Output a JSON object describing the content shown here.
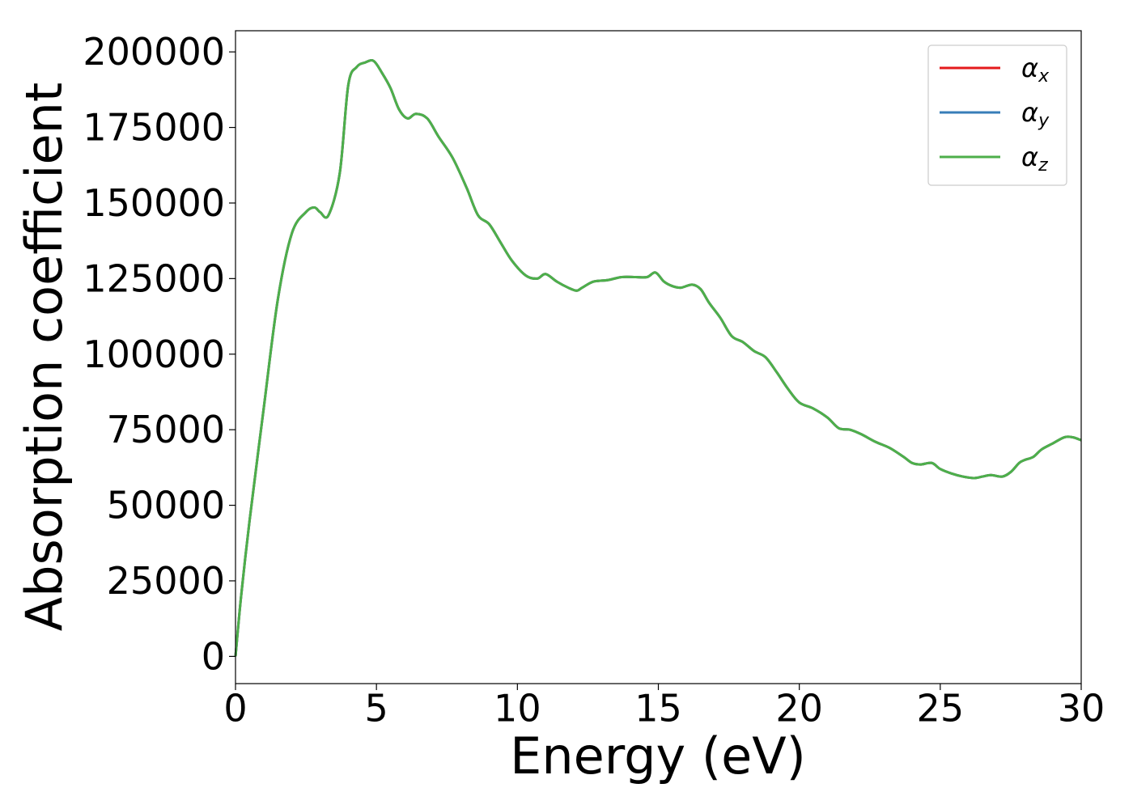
{
  "chart_data": {
    "type": "line",
    "xlabel": "Energy (eV)",
    "ylabel": "Absorption coefficient",
    "xlim": [
      0,
      30
    ],
    "ylim": [
      -9000,
      207000
    ],
    "xticks": [
      0,
      5,
      10,
      15,
      20,
      25,
      30
    ],
    "xtick_labels": [
      "0",
      "5",
      "10",
      "15",
      "20",
      "25",
      "30"
    ],
    "yticks": [
      0,
      25000,
      50000,
      75000,
      100000,
      125000,
      150000,
      175000,
      200000
    ],
    "ytick_labels": [
      "0",
      "25000",
      "50000",
      "75000",
      "100000",
      "125000",
      "150000",
      "175000",
      "200000"
    ],
    "grid": false,
    "legend_position": "top-right",
    "x": [
      0,
      0.2,
      0.5,
      1.0,
      1.5,
      2.0,
      2.5,
      2.8,
      3.0,
      3.3,
      3.7,
      4.0,
      4.3,
      4.6,
      4.9,
      5.2,
      5.5,
      5.8,
      6.1,
      6.4,
      6.8,
      7.2,
      7.7,
      8.2,
      8.6,
      9.0,
      9.4,
      9.8,
      10.3,
      10.7,
      11.0,
      11.4,
      11.8,
      12.1,
      12.3,
      12.7,
      13.2,
      13.7,
      14.2,
      14.6,
      14.9,
      15.2,
      15.5,
      15.8,
      16.2,
      16.5,
      16.8,
      17.2,
      17.6,
      18.0,
      18.4,
      18.8,
      19.2,
      19.6,
      20.0,
      20.5,
      21.0,
      21.4,
      21.8,
      22.2,
      22.7,
      23.2,
      23.7,
      24.0,
      24.3,
      24.7,
      25.0,
      25.4,
      25.8,
      26.2,
      26.5,
      26.8,
      27.2,
      27.5,
      27.8,
      28.0,
      28.3,
      28.6,
      29.0,
      29.4,
      29.7,
      30.0
    ],
    "series": [
      {
        "name": "α",
        "subscript": "x",
        "color": "#e41a1c",
        "values": [
          0,
          20000,
          45000,
          82000,
          118000,
          140000,
          147000,
          148500,
          147000,
          146000,
          160000,
          189000,
          195000,
          196500,
          197000,
          193000,
          188000,
          181000,
          178000,
          179500,
          178000,
          172000,
          165000,
          155000,
          146000,
          143000,
          137000,
          131000,
          126000,
          125000,
          126500,
          124000,
          122000,
          121000,
          122000,
          124000,
          124500,
          125500,
          125500,
          125500,
          127000,
          124000,
          122500,
          122000,
          123000,
          121500,
          117000,
          112000,
          106000,
          104000,
          101000,
          99000,
          94000,
          88500,
          84000,
          82000,
          79000,
          75500,
          75000,
          73500,
          71000,
          69000,
          66000,
          64000,
          63500,
          64000,
          62000,
          60500,
          59500,
          59000,
          59500,
          60000,
          59500,
          61000,
          64000,
          65000,
          66000,
          68500,
          70500,
          72500,
          72500,
          71500
        ]
      },
      {
        "name": "α",
        "subscript": "y",
        "color": "#377eb8",
        "values": [
          0,
          20000,
          45000,
          82000,
          118000,
          140000,
          147000,
          148500,
          147000,
          146000,
          160000,
          189000,
          195000,
          196500,
          197000,
          193000,
          188000,
          181000,
          178000,
          179500,
          178000,
          172000,
          165000,
          155000,
          146000,
          143000,
          137000,
          131000,
          126000,
          125000,
          126500,
          124000,
          122000,
          121000,
          122000,
          124000,
          124500,
          125500,
          125500,
          125500,
          127000,
          124000,
          122500,
          122000,
          123000,
          121500,
          117000,
          112000,
          106000,
          104000,
          101000,
          99000,
          94000,
          88500,
          84000,
          82000,
          79000,
          75500,
          75000,
          73500,
          71000,
          69000,
          66000,
          64000,
          63500,
          64000,
          62000,
          60500,
          59500,
          59000,
          59500,
          60000,
          59500,
          61000,
          64000,
          65000,
          66000,
          68500,
          70500,
          72500,
          72500,
          71500
        ]
      },
      {
        "name": "α",
        "subscript": "z",
        "color": "#4daf4a",
        "values": [
          0,
          20000,
          45000,
          82000,
          118000,
          140000,
          147000,
          148500,
          147000,
          146000,
          160000,
          189000,
          195000,
          196500,
          197000,
          193000,
          188000,
          181000,
          178000,
          179500,
          178000,
          172000,
          165000,
          155000,
          146000,
          143000,
          137000,
          131000,
          126000,
          125000,
          126500,
          124000,
          122000,
          121000,
          122000,
          124000,
          124500,
          125500,
          125500,
          125500,
          127000,
          124000,
          122500,
          122000,
          123000,
          121500,
          117000,
          112000,
          106000,
          104000,
          101000,
          99000,
          94000,
          88500,
          84000,
          82000,
          79000,
          75500,
          75000,
          73500,
          71000,
          69000,
          66000,
          64000,
          63500,
          64000,
          62000,
          60500,
          59500,
          59000,
          59500,
          60000,
          59500,
          61000,
          64000,
          65000,
          66000,
          68500,
          70500,
          72500,
          72500,
          71500
        ]
      }
    ]
  }
}
